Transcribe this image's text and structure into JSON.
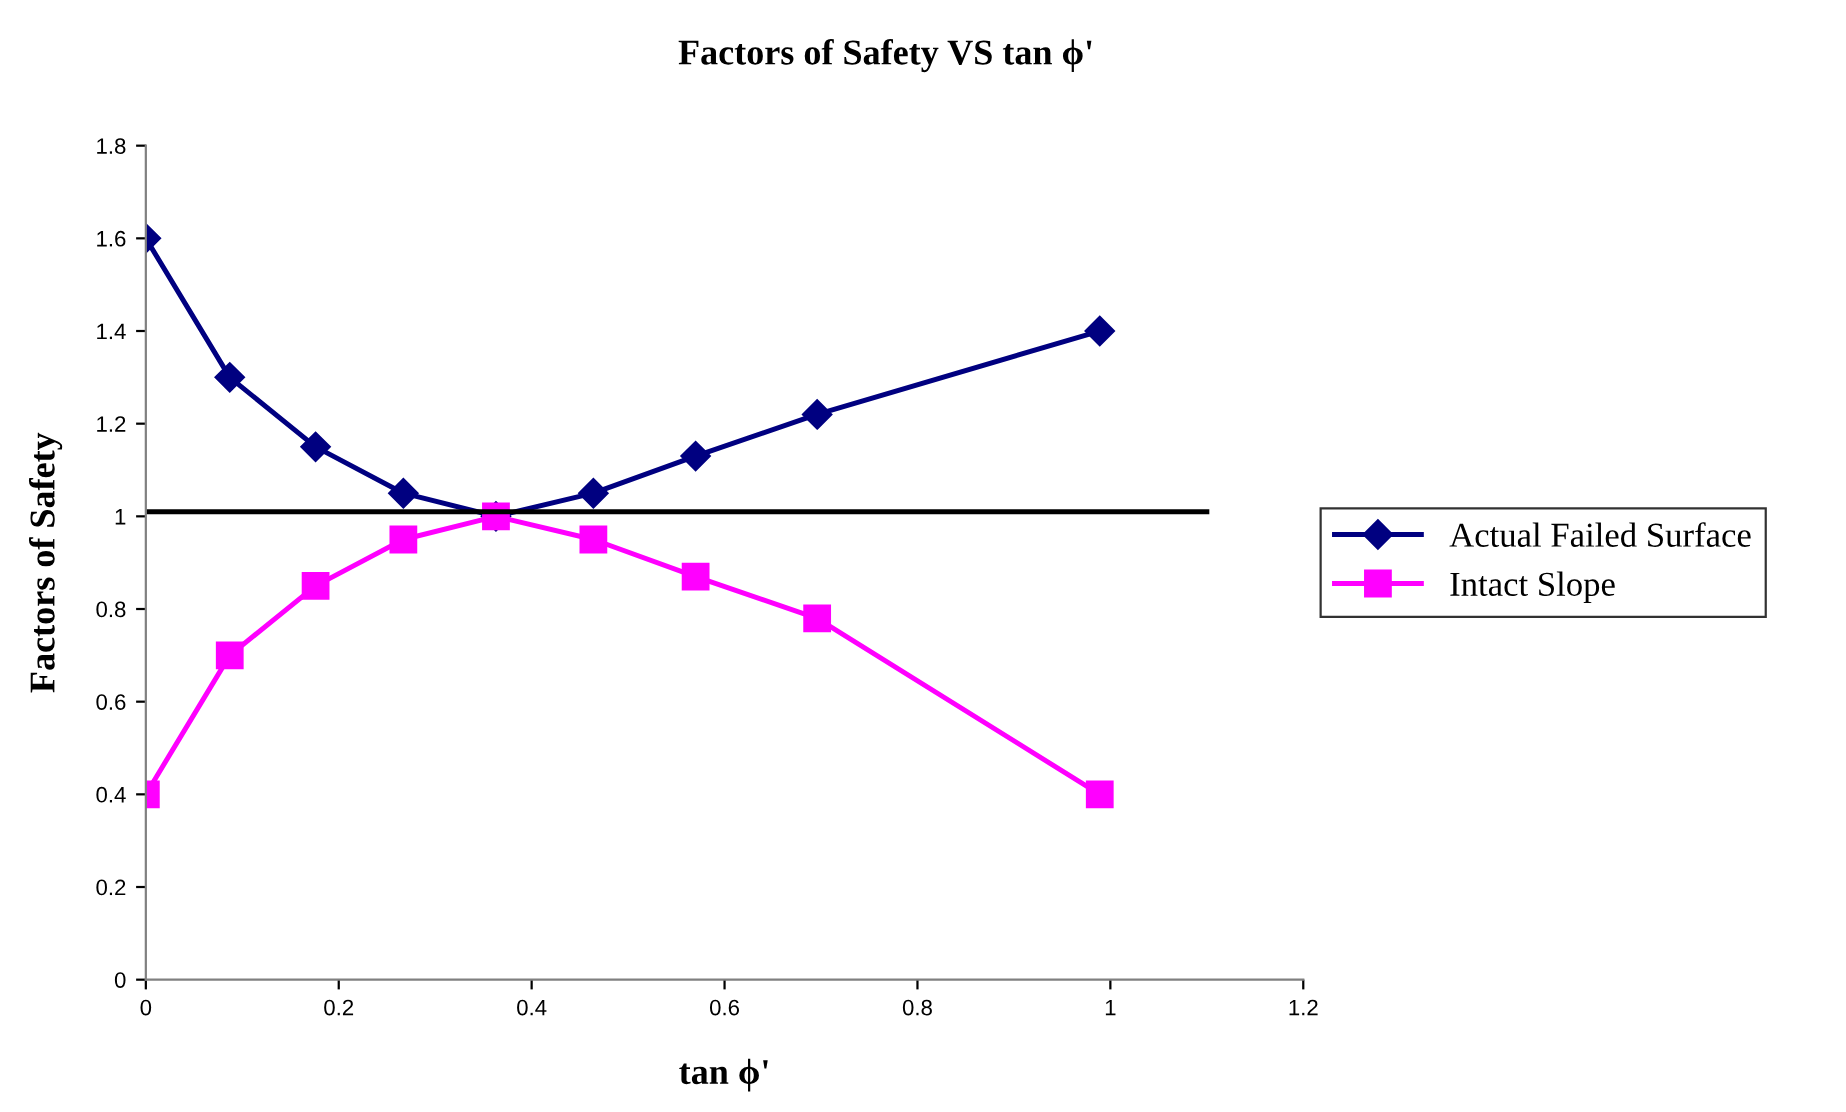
{
  "chart_data": {
    "type": "line",
    "title": "Factors of Safety VS tan ϕ'",
    "xlabel": "tan ϕ'",
    "ylabel": "Factors of Safety",
    "x": [
      0,
      0.087,
      0.176,
      0.267,
      0.363,
      0.464,
      0.57,
      0.696,
      0.989
    ],
    "series": [
      {
        "name": "Actual Failed Surface",
        "color": "#000080",
        "marker": "diamond",
        "values": [
          1.6,
          1.3,
          1.15,
          1.05,
          1.0,
          1.05,
          1.13,
          1.22,
          1.4
        ]
      },
      {
        "name": "Intact Slope",
        "color": "#ff00ff",
        "marker": "square",
        "values": [
          0.4,
          0.7,
          0.85,
          0.95,
          1.0,
          0.95,
          0.87,
          0.78,
          0.4
        ]
      },
      {
        "color": "#000000",
        "marker": "none",
        "x": [
          0,
          1.1
        ],
        "values": [
          1.01,
          1.01
        ]
      }
    ],
    "xlim": [
      0,
      1.2
    ],
    "xticks": [
      0,
      0.2,
      0.4,
      0.6,
      0.8,
      1,
      1.2
    ],
    "ylim": [
      0,
      1.8
    ],
    "yticks": [
      0,
      0.2,
      0.4,
      0.6,
      0.8,
      1,
      1.2,
      1.4,
      1.6,
      1.8
    ],
    "grid": false,
    "legend": "right",
    "line_style": "solid"
  }
}
